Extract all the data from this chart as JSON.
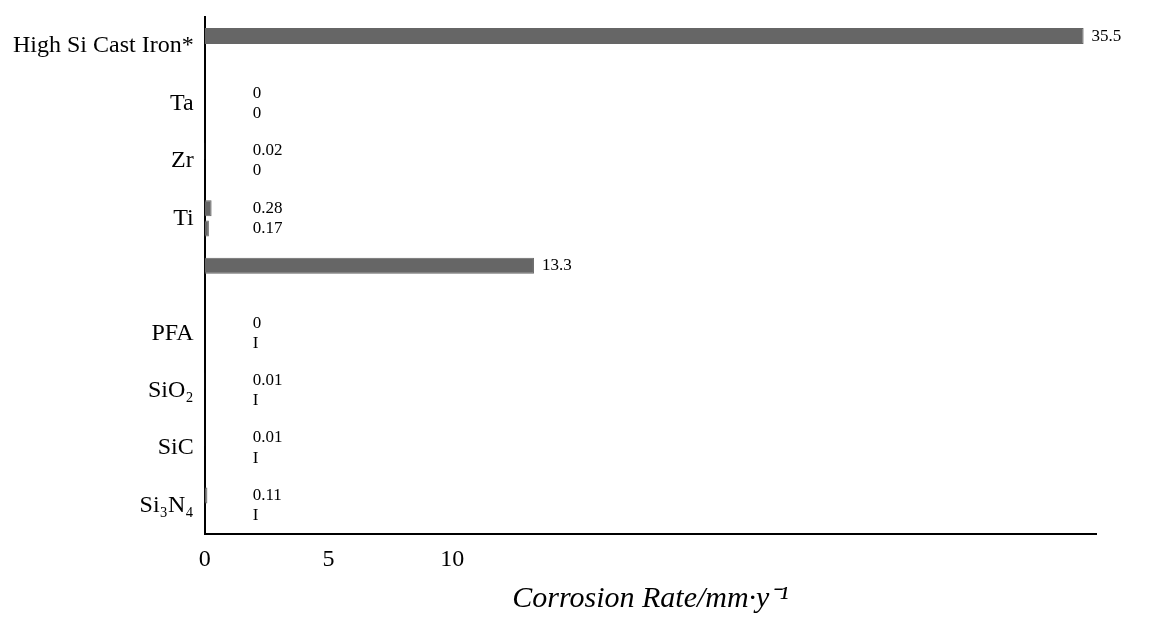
{
  "chart_data": {
    "type": "bar",
    "orientation": "horizontal",
    "xlabel": "Corrosion Rate/mm·y⁻¹",
    "categories": [
      "High Si Cast Iron*",
      "Ta",
      "Zr",
      "Ti",
      null,
      "PFA",
      "SiO₂",
      "SiC",
      "Si₃N₄"
    ],
    "series": [
      {
        "color": "#666666",
        "values": [
          35.5,
          0,
          0.02,
          0.28,
          13.3,
          0,
          0.01,
          0.01,
          0.11
        ],
        "value_labels": [
          "35.5",
          "0",
          "0.02",
          "0.28",
          "13.3",
          "0",
          "0.01",
          "0.01",
          "0.11"
        ]
      },
      {
        "color": "#666666",
        "values": [
          null,
          0,
          0,
          0.17,
          null,
          null,
          null,
          null,
          null
        ],
        "value_labels": [
          null,
          "0",
          "0",
          "0.17",
          null,
          "I",
          "I",
          "I",
          "I"
        ]
      }
    ],
    "xlim": [
      0,
      36
    ],
    "xticks": [
      0,
      5,
      10
    ]
  }
}
